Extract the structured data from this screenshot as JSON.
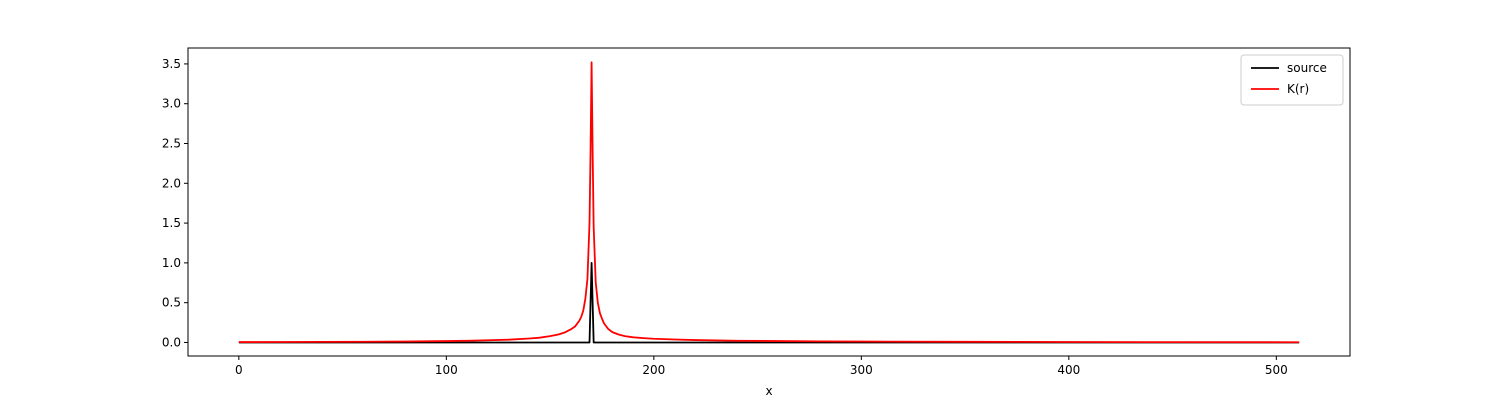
{
  "chart_data": {
    "type": "line",
    "title": "",
    "xlabel": "x",
    "ylabel": "",
    "xlim": [
      -24.5,
      535.5
    ],
    "ylim": [
      -0.17,
      3.7
    ],
    "xticks": [
      0,
      100,
      200,
      300,
      400,
      500
    ],
    "xtick_labels": [
      "0",
      "100",
      "200",
      "300",
      "400",
      "500"
    ],
    "yticks": [
      0.0,
      0.5,
      1.0,
      1.5,
      2.0,
      2.5,
      3.0,
      3.5
    ],
    "ytick_labels": [
      "0.0",
      "0.5",
      "1.0",
      "1.5",
      "2.0",
      "2.5",
      "3.0",
      "3.5"
    ],
    "grid": false,
    "legend_position": "top-right",
    "series": [
      {
        "name": "source",
        "color": "#000000",
        "x": [
          0,
          169,
          170,
          171,
          511
        ],
        "y": [
          0,
          0,
          1.0,
          0,
          0
        ]
      },
      {
        "name": "K(r)",
        "color": "#ff0000",
        "peak_x": 170,
        "peak_y": 3.52,
        "x": [
          0,
          20,
          40,
          60,
          80,
          100,
          110,
          120,
          130,
          140,
          145,
          150,
          154,
          157,
          160,
          162,
          164,
          165,
          166,
          167,
          168,
          169,
          169.5,
          170,
          170.5,
          171,
          172,
          173,
          174,
          175,
          176,
          178,
          180,
          183,
          186,
          190,
          195,
          200,
          210,
          220,
          240,
          260,
          280,
          300,
          350,
          400,
          450,
          511
        ],
        "y": [
          0.005,
          0.006,
          0.007,
          0.009,
          0.012,
          0.018,
          0.022,
          0.028,
          0.035,
          0.05,
          0.06,
          0.08,
          0.1,
          0.125,
          0.165,
          0.2,
          0.27,
          0.32,
          0.4,
          0.55,
          0.8,
          1.5,
          2.4,
          3.52,
          2.4,
          1.45,
          0.75,
          0.5,
          0.37,
          0.3,
          0.24,
          0.17,
          0.13,
          0.1,
          0.08,
          0.065,
          0.055,
          0.047,
          0.037,
          0.03,
          0.022,
          0.018,
          0.014,
          0.012,
          0.008,
          0.006,
          0.004,
          0.003
        ]
      }
    ]
  }
}
